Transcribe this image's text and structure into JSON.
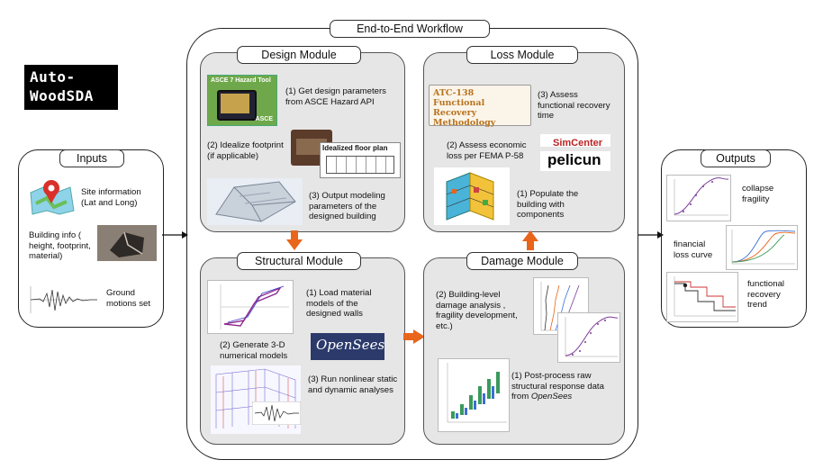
{
  "logo": {
    "line1": "Auto-",
    "line2": "WoodSDA"
  },
  "workflow": {
    "title": "End-to-End Workflow"
  },
  "inputs": {
    "title": "Inputs",
    "site": "Site information\n(Lat and Long)",
    "building": "Building info (\nheight, footprint,\nmaterial)",
    "ground": "Ground\nmotions set"
  },
  "design": {
    "title": "Design Module",
    "step1": "(1) Get design parameters\nfrom ASCE Hazard API",
    "step2": "(2) Idealize footprint\n(if applicable)",
    "step3": "(3) Output modeling\nparameters of the\ndesigned building",
    "asce_title": "ASCE 7 Hazard Tool",
    "asce_logo": "ASCE",
    "floorplan": "Idealized floor plan"
  },
  "structural": {
    "title": "Structural Module",
    "step1": "(1) Load material\nmodels of the\ndesigned walls",
    "step2": "(2) Generate 3-D\nnumerical models",
    "step3": "(3) Run nonlinear static\nand dynamic analyses",
    "opensees": "OpenSees"
  },
  "loss": {
    "title": "Loss Module",
    "atc": "ATC-138 Functional\nRecovery\nMethodology",
    "step3": "(3) Assess\nfunctional recovery\ntime",
    "step2": "(2) Assess economic\nloss per FEMA P-58",
    "step1": "(1) Populate the\nbuilding with\ncomponents",
    "simcenter": "SimCenter",
    "pelicun": "pelicun"
  },
  "damage": {
    "title": "Damage Module",
    "step2": "(2) Building-level\ndamage analysis ,\nfragility development,\netc.)",
    "step1_prefix": "(1) Post-process raw\nstructural response data\nfrom ",
    "step1_italic": "OpenSees"
  },
  "outputs": {
    "title": "Outputs",
    "collapse": "collapse\nfragility",
    "financial": "financial\nloss curve",
    "recovery": "functional\nrecovery\ntrend"
  },
  "colors": {
    "orange_arrow": "#e8651b",
    "module_fill": "#e6e6e6"
  }
}
